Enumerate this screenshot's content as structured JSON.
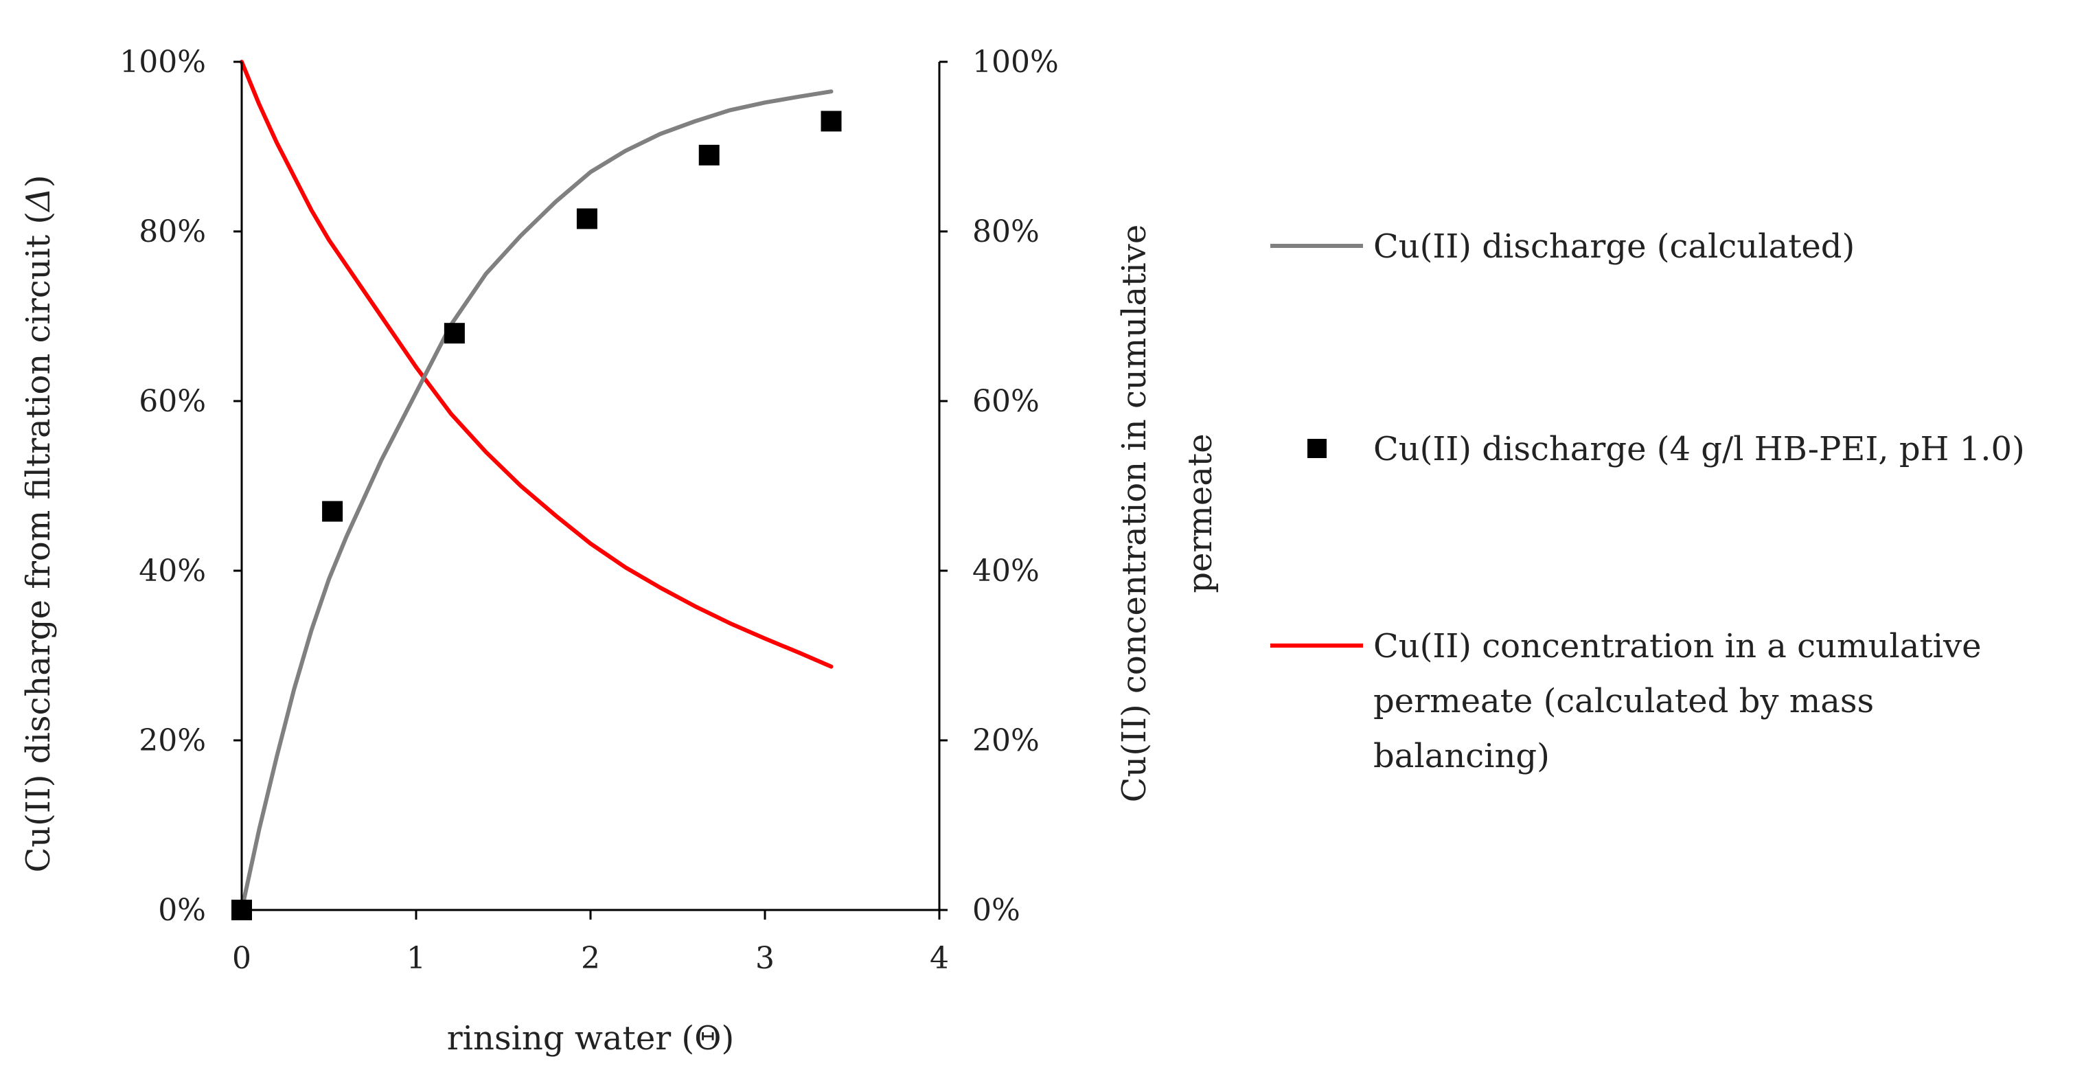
{
  "chart_data": {
    "type": "line",
    "x_axis": {
      "label_prefix": "rinsing water (",
      "label_symbol": "Θ",
      "label_suffix": ")",
      "range": [
        0,
        4
      ],
      "ticks": [
        0,
        1,
        2,
        3,
        4
      ],
      "tick_labels": [
        "0",
        "1",
        "2",
        "3",
        "4"
      ]
    },
    "y_left": {
      "label_prefix": "Cu(II) discharge from filtration circuit (",
      "label_symbol": "Δ",
      "label_suffix": ")",
      "range": [
        0,
        1
      ],
      "ticks": [
        0,
        0.2,
        0.4,
        0.6,
        0.8,
        1.0
      ],
      "tick_labels": [
        "0%",
        "20%",
        "40%",
        "60%",
        "80%",
        "100%"
      ]
    },
    "y_right": {
      "label_line1": "Cu(II) concentration in cumulative",
      "label_line2": "permeate",
      "range": [
        0,
        1
      ],
      "ticks": [
        0,
        0.2,
        0.4,
        0.6,
        0.8,
        1.0
      ],
      "tick_labels": [
        "0%",
        "20%",
        "40%",
        "60%",
        "80%",
        "100%"
      ]
    },
    "series": [
      {
        "name": "Cu(II) discharge (calculated)",
        "type": "line",
        "color": "#808080",
        "x": [
          0,
          0.1,
          0.2,
          0.3,
          0.4,
          0.5,
          0.6,
          0.8,
          1.0,
          1.2,
          1.4,
          1.6,
          1.8,
          2.0,
          2.2,
          2.4,
          2.6,
          2.8,
          3.0,
          3.2,
          3.38
        ],
        "y": [
          0,
          0.095,
          0.18,
          0.26,
          0.33,
          0.39,
          0.44,
          0.53,
          0.61,
          0.69,
          0.75,
          0.795,
          0.835,
          0.87,
          0.895,
          0.915,
          0.93,
          0.943,
          0.952,
          0.959,
          0.965
        ]
      },
      {
        "name": "Cu(II) discharge (4 g/l HB-PEI, pH 1.0)",
        "type": "scatter",
        "color": "#000000",
        "x": [
          0,
          0.52,
          1.22,
          1.98,
          2.68,
          3.38
        ],
        "y": [
          0,
          0.47,
          0.68,
          0.815,
          0.89,
          0.93
        ]
      },
      {
        "name_line1": "Cu(II) concentration in a cumulative",
        "name_line2": "permeate (calculated by mass",
        "name_line3": "balancing)",
        "type": "line",
        "color": "#ff0000",
        "x": [
          0,
          0.1,
          0.2,
          0.3,
          0.4,
          0.5,
          0.6,
          0.8,
          1.0,
          1.2,
          1.4,
          1.6,
          1.8,
          2.0,
          2.2,
          2.4,
          2.6,
          2.8,
          3.0,
          3.2,
          3.38
        ],
        "y": [
          1.0,
          0.95,
          0.905,
          0.865,
          0.825,
          0.79,
          0.76,
          0.7,
          0.64,
          0.585,
          0.54,
          0.5,
          0.465,
          0.432,
          0.404,
          0.38,
          0.358,
          0.338,
          0.32,
          0.303,
          0.287
        ]
      }
    ]
  }
}
